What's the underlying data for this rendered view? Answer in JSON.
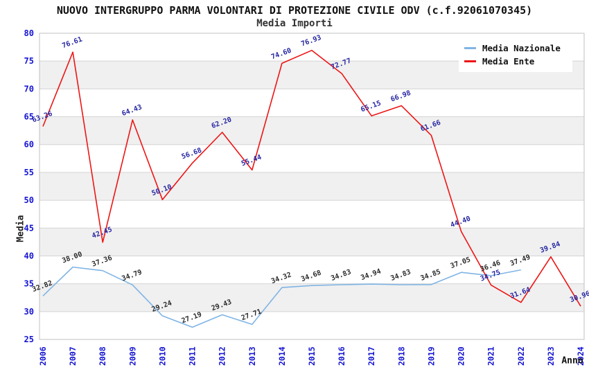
{
  "chart_data": {
    "type": "line",
    "title": "NUOVO INTERGRUPPO PARMA VOLONTARI DI PROTEZIONE CIVILE ODV (c.f.92061070345)",
    "subtitle": "Media Importi",
    "xlabel": "Anno",
    "ylabel": "Media",
    "x": [
      2006,
      2007,
      2008,
      2009,
      2010,
      2011,
      2012,
      2013,
      2014,
      2015,
      2016,
      2017,
      2018,
      2019,
      2020,
      2021,
      2022,
      2023,
      2024
    ],
    "ylim": [
      25,
      80
    ],
    "ytick_step": 5,
    "grid": "horizontal",
    "alternating_bands": true,
    "legend_position": "top-right",
    "series": [
      {
        "name": "Media Nazionale",
        "color": "#7fb4e4",
        "label_color": "#2b2b2b",
        "values": [
          32.82,
          38.0,
          37.36,
          34.79,
          29.24,
          27.19,
          29.43,
          27.71,
          34.32,
          34.68,
          34.83,
          34.94,
          34.83,
          34.85,
          37.05,
          36.46,
          37.49,
          null,
          null
        ]
      },
      {
        "name": "Media Ente",
        "color": "#ee1414",
        "label_color": "#2727a3",
        "values": [
          63.26,
          76.61,
          42.45,
          64.43,
          50.1,
          56.68,
          62.2,
          55.44,
          74.6,
          76.93,
          72.77,
          65.15,
          66.98,
          61.66,
          44.4,
          34.75,
          31.64,
          39.84,
          30.96
        ]
      }
    ],
    "colors": {
      "tick_label": "#1414d2",
      "band_gray": "#f0f0f0",
      "gridline": "#d4d4d4",
      "plot_border": "#c0c0c0",
      "background": "#ffffff"
    }
  }
}
